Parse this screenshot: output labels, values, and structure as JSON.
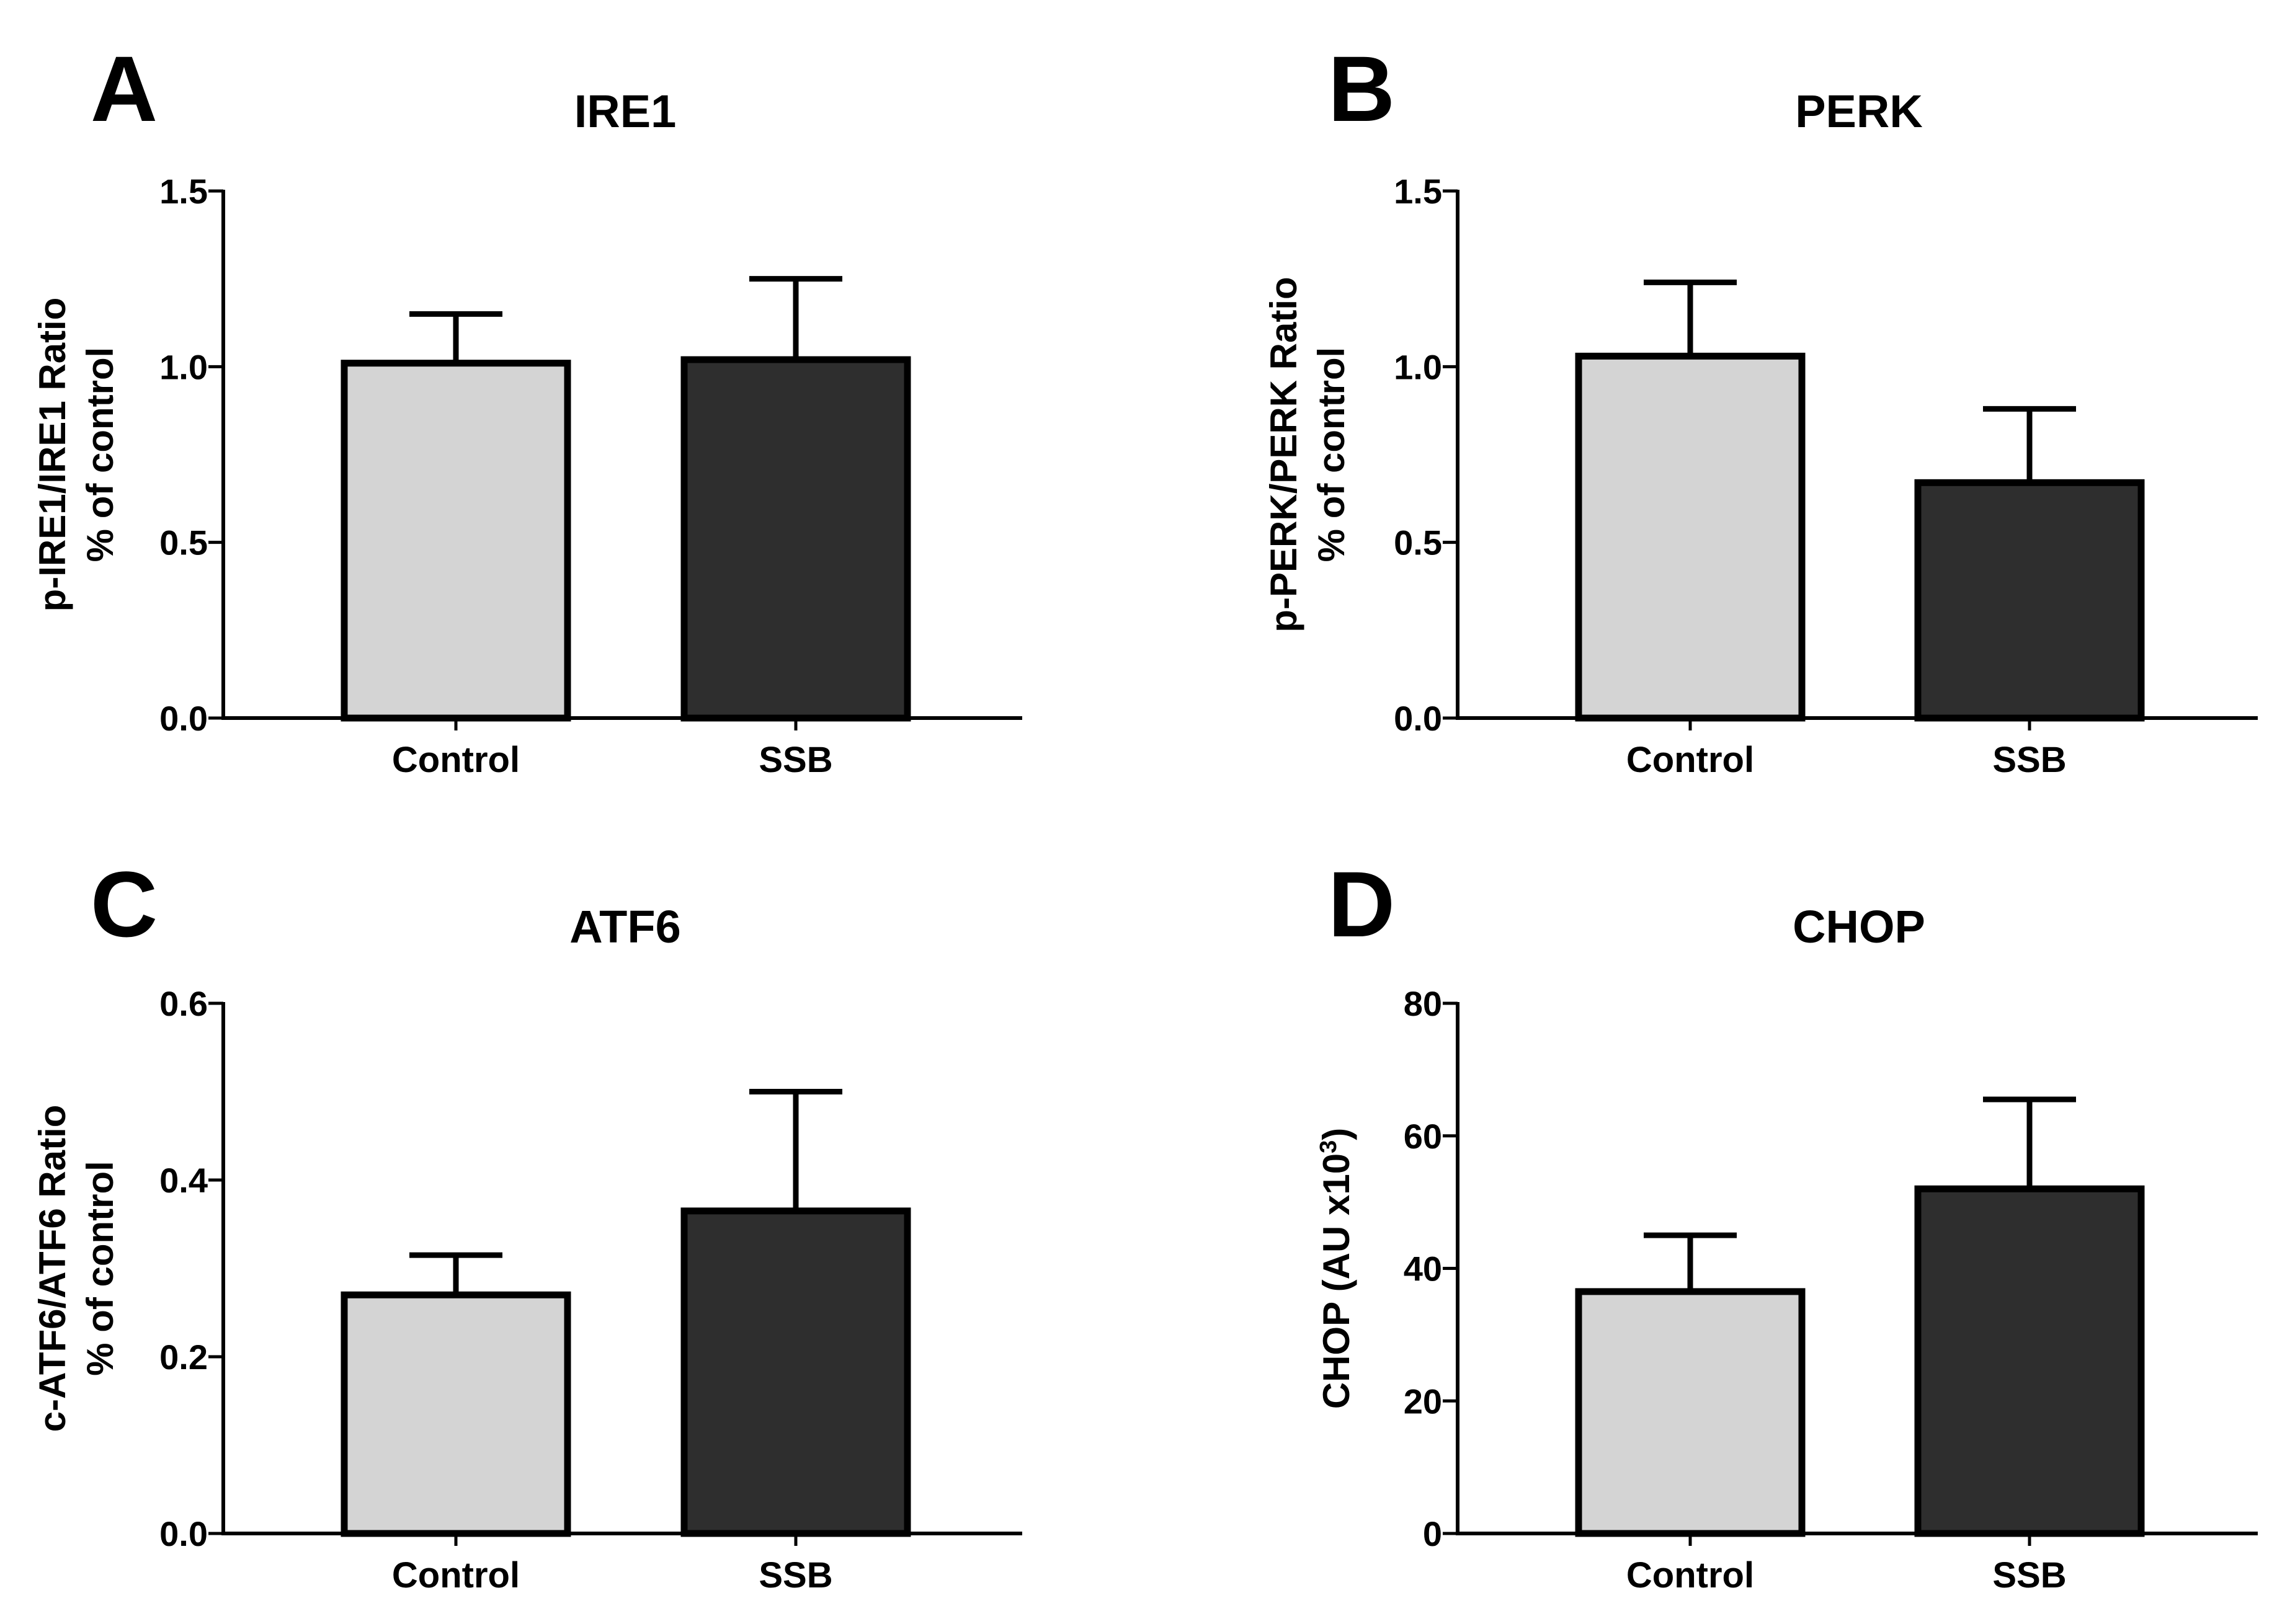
{
  "chart_data": [
    {
      "panel": "A",
      "type": "bar",
      "title": "IRE1",
      "ylabel_lines": [
        "p-IRE1/IRE1 Ratio",
        "% of control"
      ],
      "xlabel": "",
      "categories": [
        "Control",
        "SSB"
      ],
      "values": [
        1.01,
        1.02
      ],
      "errors": [
        0.14,
        0.23
      ],
      "ylim": [
        0,
        1.5
      ],
      "yticks": [
        "0.0",
        "0.5",
        "1.0",
        "1.5"
      ],
      "grid": false
    },
    {
      "panel": "B",
      "type": "bar",
      "title": "PERK",
      "ylabel_lines": [
        "p-PERK/PERK Ratio",
        "% of control"
      ],
      "xlabel": "",
      "categories": [
        "Control",
        "SSB"
      ],
      "values": [
        1.03,
        0.67
      ],
      "errors": [
        0.21,
        0.21
      ],
      "ylim": [
        0,
        1.5
      ],
      "yticks": [
        "0.0",
        "0.5",
        "1.0",
        "1.5"
      ],
      "grid": false
    },
    {
      "panel": "C",
      "type": "bar",
      "title": "ATF6",
      "ylabel_lines": [
        "c-ATF6/ATF6 Ratio",
        "% of control"
      ],
      "xlabel": "",
      "categories": [
        "Control",
        "SSB"
      ],
      "values": [
        0.27,
        0.365
      ],
      "errors": [
        0.045,
        0.135
      ],
      "ylim": [
        0,
        0.6
      ],
      "yticks": [
        "0.0",
        "0.2",
        "0.4",
        "0.6"
      ],
      "grid": false
    },
    {
      "panel": "D",
      "type": "bar",
      "title": "CHOP",
      "ylabel_lines": [
        "CHOP (AU x10",
        "3",
        ")"
      ],
      "xlabel": "",
      "categories": [
        "Control",
        "SSB"
      ],
      "values": [
        36.5,
        52.0
      ],
      "errors": [
        8.5,
        13.5
      ],
      "ylim": [
        0,
        80
      ],
      "yticks": [
        "0",
        "20",
        "40",
        "60",
        "80"
      ],
      "grid": false
    }
  ],
  "colors": {
    "control_fill": "#d4d4d4",
    "ssb_fill": "#2e2e2e",
    "stroke": "#000000"
  }
}
